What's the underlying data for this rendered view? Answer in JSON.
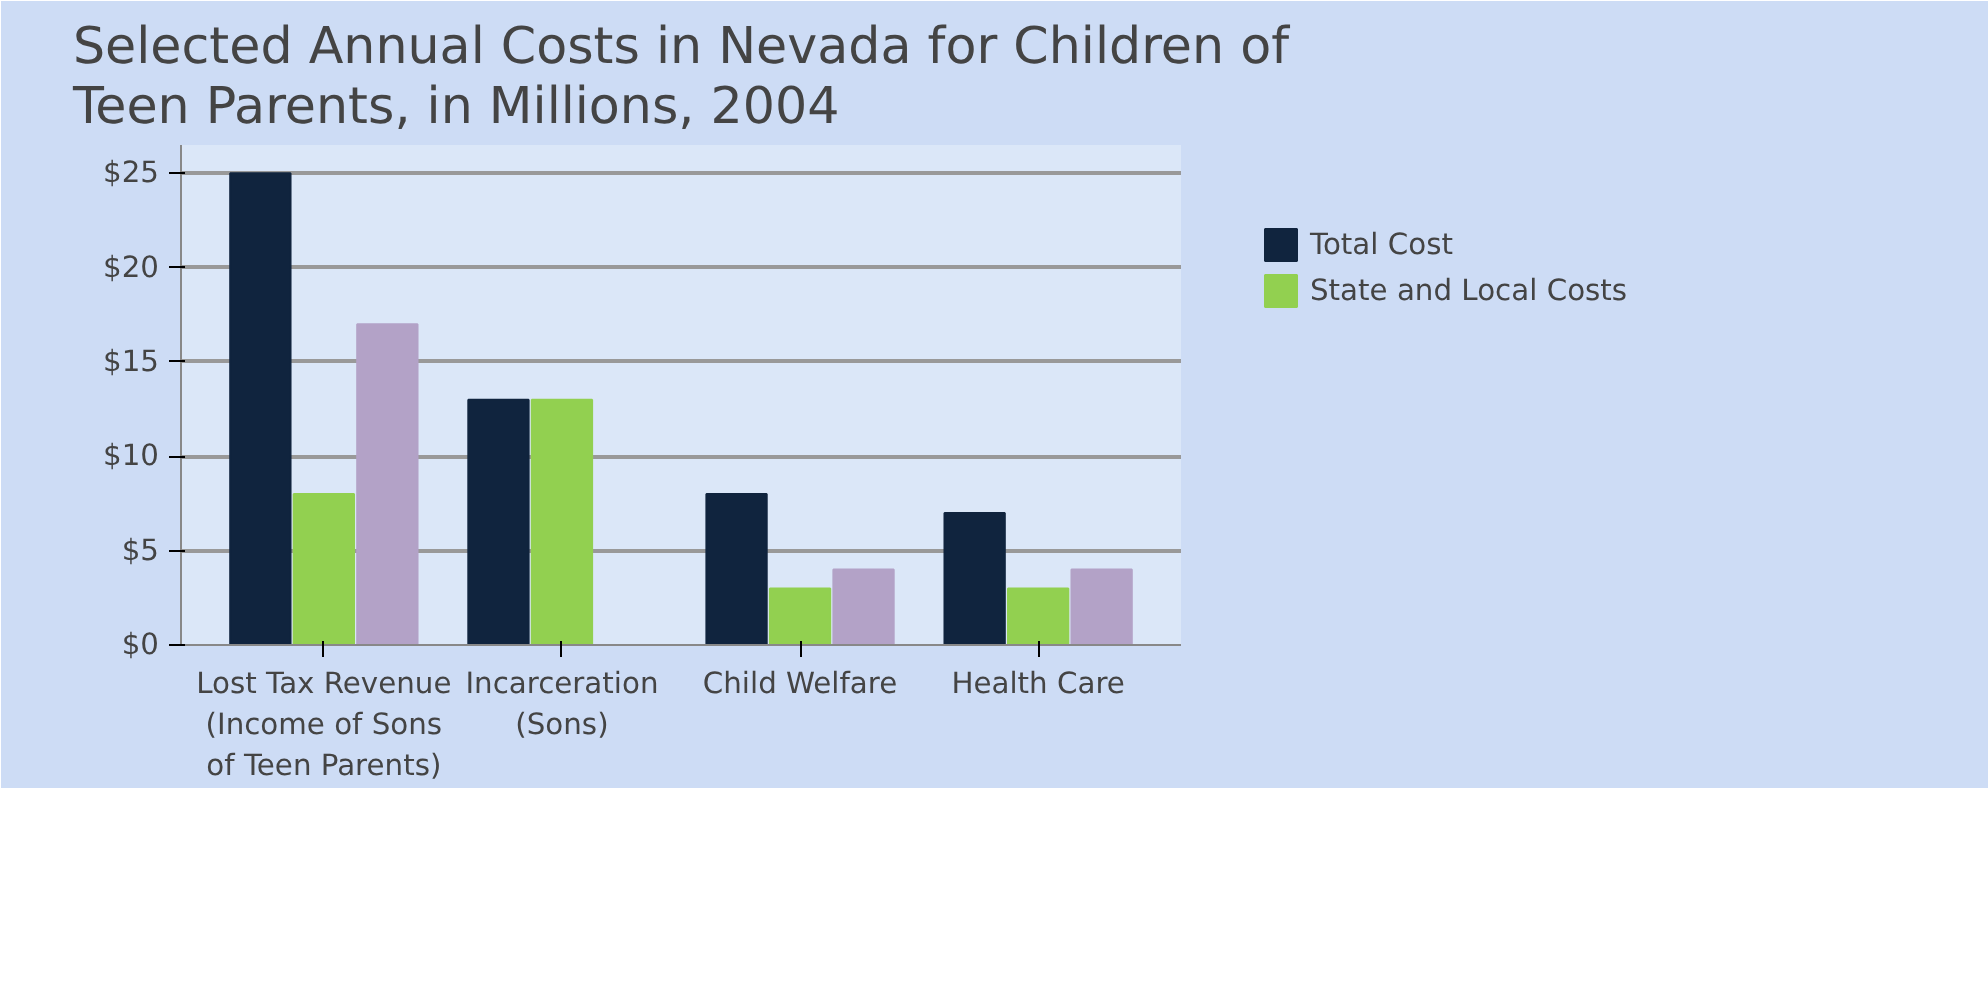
{
  "chart_data": {
    "type": "bar",
    "title": "Selected Annual Costs in Nevada for Children of Teen Parents, in Millions, 2004",
    "categories": [
      "Lost Tax Revenue (Income of Sons of Teen Parents)",
      "Incarceration (Sons)",
      "Child Welfare",
      "Health Care"
    ],
    "series": [
      {
        "name": "Total Cost",
        "color": "#10243e",
        "values": [
          25,
          13,
          8,
          7
        ]
      },
      {
        "name": "State and Local Costs",
        "color": "#92d050",
        "values": [
          8,
          13,
          3,
          3
        ]
      },
      {
        "color": "#b3a2c7",
        "values": [
          17,
          0,
          4,
          4
        ]
      }
    ],
    "ylim": [
      0,
      25
    ],
    "yticks": [
      {
        "value": 0,
        "label": "$0"
      },
      {
        "value": 5,
        "label": "$5"
      },
      {
        "value": 10,
        "label": "$10"
      },
      {
        "value": 15,
        "label": "$15"
      },
      {
        "value": 20,
        "label": "$20"
      },
      {
        "value": 25,
        "label": "$25"
      }
    ],
    "grid": "y",
    "legend": "right"
  }
}
